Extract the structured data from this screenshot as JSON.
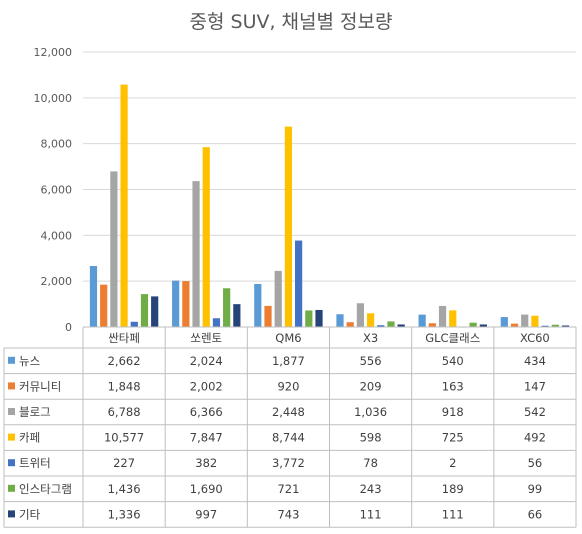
{
  "chart_data": {
    "type": "bar",
    "title": "중형 SUV, 채널별 정보량",
    "categories": [
      "싼타페",
      "쏘렌토",
      "QM6",
      "X3",
      "GLC클래스",
      "XC60"
    ],
    "ylim": [
      0,
      12000
    ],
    "yticks": [
      "0",
      "2,000",
      "4,000",
      "6,000",
      "8,000",
      "10,000",
      "12,000"
    ],
    "grid": true,
    "legend": "data-table",
    "series": [
      {
        "name": "뉴스",
        "color": "#5b9bd5",
        "values": [
          2662,
          2024,
          1877,
          556,
          540,
          434
        ],
        "labels": [
          "2,662",
          "2,024",
          "1,877",
          "556",
          "540",
          "434"
        ]
      },
      {
        "name": "커뮤니티",
        "color": "#ed7d31",
        "values": [
          1848,
          2002,
          920,
          209,
          163,
          147
        ],
        "labels": [
          "1,848",
          "2,002",
          "920",
          "209",
          "163",
          "147"
        ]
      },
      {
        "name": "블로그",
        "color": "#a5a5a5",
        "values": [
          6788,
          6366,
          2448,
          1036,
          918,
          542
        ],
        "labels": [
          "6,788",
          "6,366",
          "2,448",
          "1,036",
          "918",
          "542"
        ]
      },
      {
        "name": "카페",
        "color": "#ffc000",
        "values": [
          10577,
          7847,
          8744,
          598,
          725,
          492
        ],
        "labels": [
          "10,577",
          "7,847",
          "8,744",
          "598",
          "725",
          "492"
        ]
      },
      {
        "name": "트위터",
        "color": "#4472c4",
        "values": [
          227,
          382,
          3772,
          78,
          2,
          56
        ],
        "labels": [
          "227",
          "382",
          "3,772",
          "78",
          "2",
          "56"
        ]
      },
      {
        "name": "인스타그램",
        "color": "#70ad47",
        "values": [
          1436,
          1690,
          721,
          243,
          189,
          99
        ],
        "labels": [
          "1,436",
          "1,690",
          "721",
          "243",
          "189",
          "99"
        ]
      },
      {
        "name": "기타",
        "color": "#264478",
        "values": [
          1336,
          997,
          743,
          111,
          111,
          66
        ],
        "labels": [
          "1,336",
          "997",
          "743",
          "111",
          "111",
          "66"
        ]
      }
    ]
  }
}
